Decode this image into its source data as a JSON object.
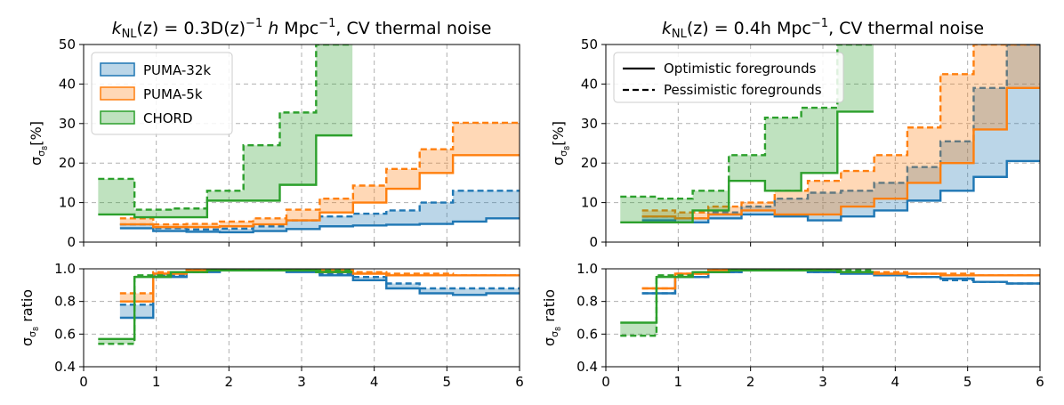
{
  "colors": {
    "puma32": "#1f77b4",
    "puma5": "#ff7f0e",
    "chord": "#2ca02c"
  },
  "chart_data": [
    {
      "type": "line",
      "title": "k_NL(z) = 0.3D(z)^-1 h Mpc^-1, CV thermal noise",
      "title_parts": {
        "k": "k",
        "nl": "NL",
        "mid": "(z) = 0.3D(z)",
        "exp": "−1",
        "h": " h",
        "mpc": " Mpc",
        "exp2": "−1",
        "tail": ", CV thermal noise"
      },
      "ylabel": "σ_σ8[%]",
      "ylabel_parts": {
        "sigma": "σ",
        "sub": "σ",
        "subsub": "8",
        "rest": "[%]"
      },
      "xlim": [
        0,
        6
      ],
      "ylim": [
        0,
        50
      ],
      "xticks": [
        "0",
        "1",
        "2",
        "3",
        "4",
        "5",
        "6"
      ],
      "yticks": [
        "0",
        "10",
        "20",
        "30",
        "40",
        "50"
      ],
      "legend": {
        "loc": "upper-left",
        "entries": [
          "PUMA-32k",
          "PUMA-5k",
          "CHORD"
        ]
      },
      "bin_edges": [
        0.2,
        0.667,
        1.133,
        1.6,
        2.067,
        2.533,
        3.0,
        3.467,
        3.933,
        4.4,
        4.867,
        5.333,
        5.8,
        6.0
      ],
      "series": [
        {
          "name": "PUMA-32k",
          "color_key": "puma32",
          "start": 0.5,
          "optimistic": [
            3.5,
            2.8,
            2.6,
            2.5,
            2.8,
            3.3,
            4.0,
            4.2,
            4.4,
            4.6,
            5.2,
            6.0
          ],
          "pessimistic": [
            4.5,
            3.5,
            3.2,
            3.4,
            4.0,
            5.5,
            6.5,
            7.2,
            8.0,
            10.0,
            13.0,
            13.0
          ]
        },
        {
          "name": "PUMA-5k",
          "color_key": "puma5",
          "start": 0.5,
          "optimistic": [
            4.5,
            3.8,
            3.8,
            4.0,
            4.5,
            5.5,
            7.5,
            10.0,
            13.5,
            17.5,
            22.0,
            22.0
          ],
          "pessimistic": [
            6.0,
            4.5,
            4.6,
            5.2,
            6.0,
            8.2,
            11.0,
            14.3,
            18.5,
            23.5,
            30.2,
            30.2
          ]
        },
        {
          "name": "CHORD",
          "color_key": "chord",
          "start": 0.2,
          "end": 3.7,
          "optimistic": [
            7.0,
            6.3,
            6.3,
            10.5,
            10.5,
            14.5,
            27.0
          ],
          "pessimistic": [
            16.0,
            8.2,
            8.5,
            13.0,
            24.5,
            32.8,
            50.0
          ]
        }
      ]
    },
    {
      "type": "line",
      "title": "k_NL(z) = 0.4h Mpc^-1, CV thermal noise",
      "title_parts": {
        "k": "k",
        "nl": "NL",
        "mid": "(z) = 0.4h",
        "mpc": " Mpc",
        "exp": "−1",
        "tail": ", CV thermal noise"
      },
      "ylabel": "σ_σ8[%]",
      "xlim": [
        0,
        6
      ],
      "ylim": [
        0,
        50
      ],
      "xticks": [
        "0",
        "1",
        "2",
        "3",
        "4",
        "5",
        "6"
      ],
      "yticks": [
        "0",
        "10",
        "20",
        "30",
        "40",
        "50"
      ],
      "legend": {
        "loc": "upper-left",
        "entries": [
          "Optimistic foregrounds",
          "Pessimistic foregrounds"
        ]
      },
      "series": [
        {
          "name": "PUMA-32k",
          "color_key": "puma32",
          "start": 0.5,
          "optimistic": [
            5.5,
            5.0,
            6.0,
            7.0,
            6.5,
            5.5,
            6.5,
            8.0,
            10.5,
            13.0,
            16.5,
            20.5
          ],
          "pessimistic": [
            6.5,
            6.0,
            7.5,
            9.0,
            11.0,
            12.5,
            13.0,
            15.0,
            19.0,
            25.5,
            39.0,
            50.0
          ]
        },
        {
          "name": "PUMA-5k",
          "color_key": "puma5",
          "start": 0.5,
          "optimistic": [
            6.5,
            6.0,
            7.0,
            8.0,
            7.0,
            7.0,
            9.0,
            11.0,
            15.0,
            20.0,
            28.5,
            39.0
          ],
          "pessimistic": [
            8.0,
            7.5,
            9.0,
            10.0,
            13.0,
            15.5,
            18.0,
            22.0,
            29.0,
            42.5,
            50.0,
            50.0
          ]
        },
        {
          "name": "CHORD",
          "color_key": "chord",
          "start": 0.2,
          "end": 3.7,
          "optimistic": [
            5.0,
            5.0,
            8.0,
            15.5,
            13.0,
            17.5,
            33.0
          ],
          "pessimistic": [
            11.5,
            11.0,
            13.0,
            22.0,
            31.5,
            34.0,
            50.0
          ]
        }
      ]
    },
    {
      "type": "line",
      "ylabel": "σ_σ8 ratio",
      "ylabel_parts": {
        "sigma": "σ",
        "sub": "σ",
        "subsub": "8",
        "rest": " ratio"
      },
      "xlim": [
        0,
        6
      ],
      "ylim": [
        0.4,
        1.0
      ],
      "xticks": [
        "0",
        "1",
        "2",
        "3",
        "4",
        "5",
        "6"
      ],
      "yticks": [
        "0.4",
        "0.6",
        "0.8",
        "1.0"
      ],
      "series": [
        {
          "name": "PUMA-32k",
          "color_key": "puma32",
          "start": 0.5,
          "optimistic": [
            0.7,
            0.95,
            0.98,
            0.99,
            0.99,
            0.98,
            0.96,
            0.93,
            0.88,
            0.85,
            0.84,
            0.85
          ],
          "pessimistic": [
            0.78,
            0.96,
            0.99,
            0.99,
            0.99,
            0.99,
            0.97,
            0.95,
            0.91,
            0.88,
            0.88,
            0.88
          ]
        },
        {
          "name": "PUMA-5k",
          "color_key": "puma5",
          "start": 0.5,
          "optimistic": [
            0.8,
            0.97,
            0.99,
            0.99,
            0.99,
            0.99,
            0.98,
            0.97,
            0.96,
            0.96,
            0.96,
            0.96
          ],
          "pessimistic": [
            0.85,
            0.98,
            0.99,
            1.0,
            1.0,
            0.99,
            0.99,
            0.98,
            0.97,
            0.97,
            0.96,
            0.96
          ]
        },
        {
          "name": "CHORD",
          "color_key": "chord",
          "start": 0.2,
          "end": 3.7,
          "optimistic": [
            0.57,
            0.95,
            0.98,
            0.99,
            0.99,
            0.99,
            0.98
          ],
          "pessimistic": [
            0.54,
            0.96,
            0.98,
            0.99,
            1.0,
            0.99,
            0.99
          ]
        }
      ]
    },
    {
      "type": "line",
      "ylabel": "σ_σ8 ratio",
      "xlim": [
        0,
        6
      ],
      "ylim": [
        0.4,
        1.0
      ],
      "xticks": [
        "0",
        "1",
        "2",
        "3",
        "4",
        "5",
        "6"
      ],
      "yticks": [
        "0.4",
        "0.6",
        "0.8",
        "1.0"
      ],
      "series": [
        {
          "name": "PUMA-32k",
          "color_key": "puma32",
          "start": 0.5,
          "optimistic": [
            0.85,
            0.95,
            0.98,
            0.99,
            0.99,
            0.98,
            0.97,
            0.96,
            0.95,
            0.94,
            0.92,
            0.91
          ],
          "pessimistic": [
            0.85,
            0.95,
            0.98,
            0.99,
            0.99,
            0.98,
            0.98,
            0.96,
            0.95,
            0.93,
            0.92,
            0.91
          ]
        },
        {
          "name": "PUMA-5k",
          "color_key": "puma5",
          "start": 0.5,
          "optimistic": [
            0.88,
            0.97,
            0.99,
            0.99,
            1.0,
            0.99,
            0.98,
            0.97,
            0.97,
            0.96,
            0.96,
            0.96
          ],
          "pessimistic": [
            0.88,
            0.97,
            0.99,
            0.99,
            1.0,
            0.99,
            0.98,
            0.98,
            0.97,
            0.97,
            0.96,
            0.96
          ]
        },
        {
          "name": "CHORD",
          "color_key": "chord",
          "start": 0.2,
          "end": 3.7,
          "optimistic": [
            0.67,
            0.95,
            0.98,
            0.99,
            0.99,
            0.99,
            0.98
          ],
          "pessimistic": [
            0.59,
            0.96,
            0.98,
            0.99,
            1.0,
            0.99,
            0.99
          ]
        }
      ]
    }
  ]
}
